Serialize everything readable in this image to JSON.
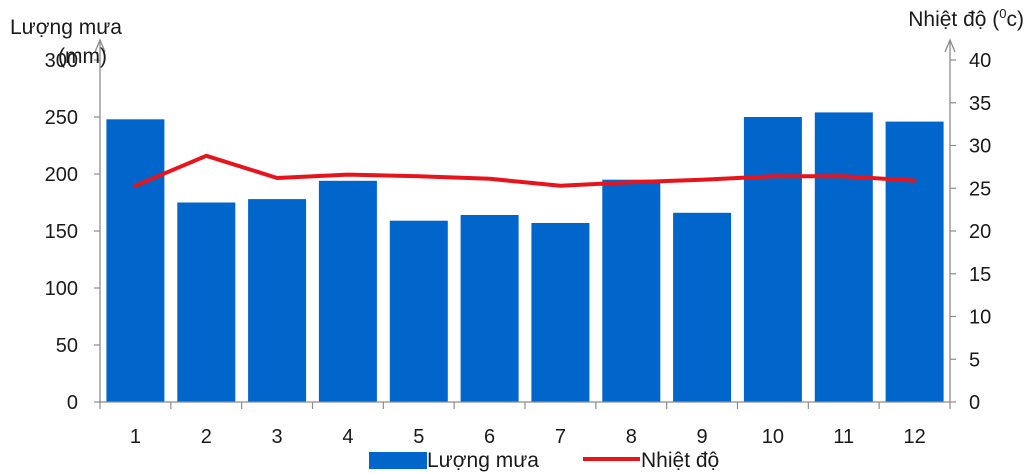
{
  "chart_data": {
    "type": "bar+line",
    "categories": [
      "1",
      "2",
      "3",
      "4",
      "5",
      "6",
      "7",
      "8",
      "9",
      "10",
      "11",
      "12"
    ],
    "series": [
      {
        "name": "Lượng mưa",
        "type": "bar",
        "axis": "left",
        "color": "#0066cc",
        "values": [
          248,
          175,
          178,
          194,
          159,
          164,
          157,
          195,
          166,
          250,
          254,
          246
        ]
      },
      {
        "name": "Nhiệt độ",
        "type": "line",
        "axis": "right",
        "color": "#e8141c",
        "values": [
          25.3,
          28.8,
          26.2,
          26.6,
          26.4,
          26.1,
          25.3,
          25.7,
          26.0,
          26.4,
          26.4,
          25.9
        ]
      }
    ],
    "y_left": {
      "label_line1": "Lượng mưa",
      "label_line2": "(mm)",
      "ylim": [
        0,
        300
      ],
      "ticks": [
        "0",
        "50",
        "100",
        "150",
        "200",
        "250",
        "300"
      ]
    },
    "y_right": {
      "label": "Nhiệt độ (",
      "label_sup": "0",
      "label_end": "c)",
      "ylim": [
        0,
        40
      ],
      "ticks": [
        "0",
        "5",
        "10",
        "15",
        "20",
        "25",
        "30",
        "35",
        "40"
      ]
    },
    "legend": {
      "position": "bottom",
      "items": [
        "Lượng mưa",
        "Nhiệt độ"
      ]
    },
    "grid": false
  }
}
